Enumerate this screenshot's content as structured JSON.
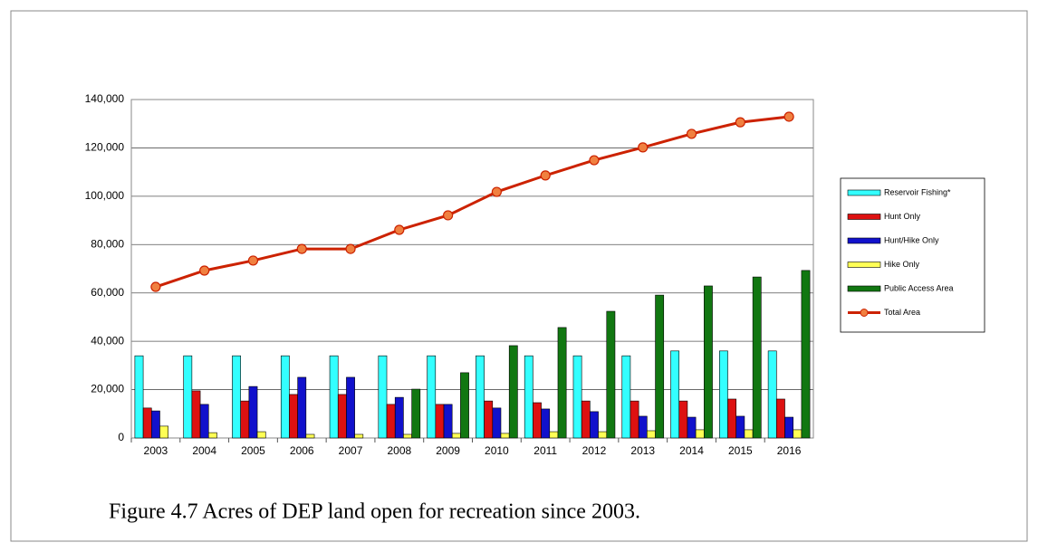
{
  "chart_data": {
    "type": "bar",
    "caption": "Figure 4.7 Acres of DEP land open for recreation since 2003.",
    "categories": [
      "2003",
      "2004",
      "2005",
      "2006",
      "2007",
      "2008",
      "2009",
      "2010",
      "2011",
      "2012",
      "2013",
      "2014",
      "2015",
      "2016"
    ],
    "series": [
      {
        "name": "Reservoir Fishing*",
        "color": "#33ffff",
        "values": [
          34000,
          34000,
          34000,
          34000,
          34000,
          34000,
          34000,
          34000,
          34000,
          34000,
          34000,
          36000,
          36000,
          36000
        ]
      },
      {
        "name": "Hunt Only",
        "color": "#dd1111",
        "values": [
          12400,
          19500,
          15300,
          18000,
          18000,
          13900,
          13900,
          15300,
          14600,
          15300,
          15300,
          15300,
          16100,
          16100
        ]
      },
      {
        "name": "Hunt/Hike Only",
        "color": "#1111cc",
        "values": [
          11200,
          13900,
          21300,
          25100,
          25100,
          16800,
          13900,
          12400,
          12000,
          10900,
          9000,
          8600,
          9000,
          8600
        ]
      },
      {
        "name": "Hike Only",
        "color": "#ffff55",
        "values": [
          4900,
          2200,
          2600,
          1500,
          1500,
          1500,
          1900,
          1900,
          2600,
          2600,
          3000,
          3400,
          3400,
          3400
        ]
      },
      {
        "name": "Public Access Area",
        "color": "#117711",
        "values": [
          0,
          0,
          0,
          0,
          0,
          20200,
          27000,
          38200,
          45700,
          52400,
          59100,
          62900,
          66600,
          69300
        ]
      },
      {
        "name": "Total Area",
        "color": "#cc2200",
        "type": "line",
        "values": [
          62500,
          69250,
          73400,
          78200,
          78200,
          86100,
          92100,
          101800,
          108600,
          114900,
          120200,
          125800,
          130600,
          132900
        ]
      }
    ],
    "ylim": [
      0,
      140000
    ],
    "yticks": [
      0,
      {
        "value": 20000,
        "label": "20,000"
      },
      {
        "value": 40000,
        "label": "40,000"
      },
      {
        "value": 60000,
        "label": "60,000"
      },
      {
        "value": 80000,
        "label": "80,000"
      },
      {
        "value": 100000,
        "label": "100,000"
      },
      {
        "value": 120000,
        "label": "120,000"
      },
      {
        "value": 140000,
        "label": "140,000"
      }
    ],
    "grid": true,
    "legend": "right"
  }
}
